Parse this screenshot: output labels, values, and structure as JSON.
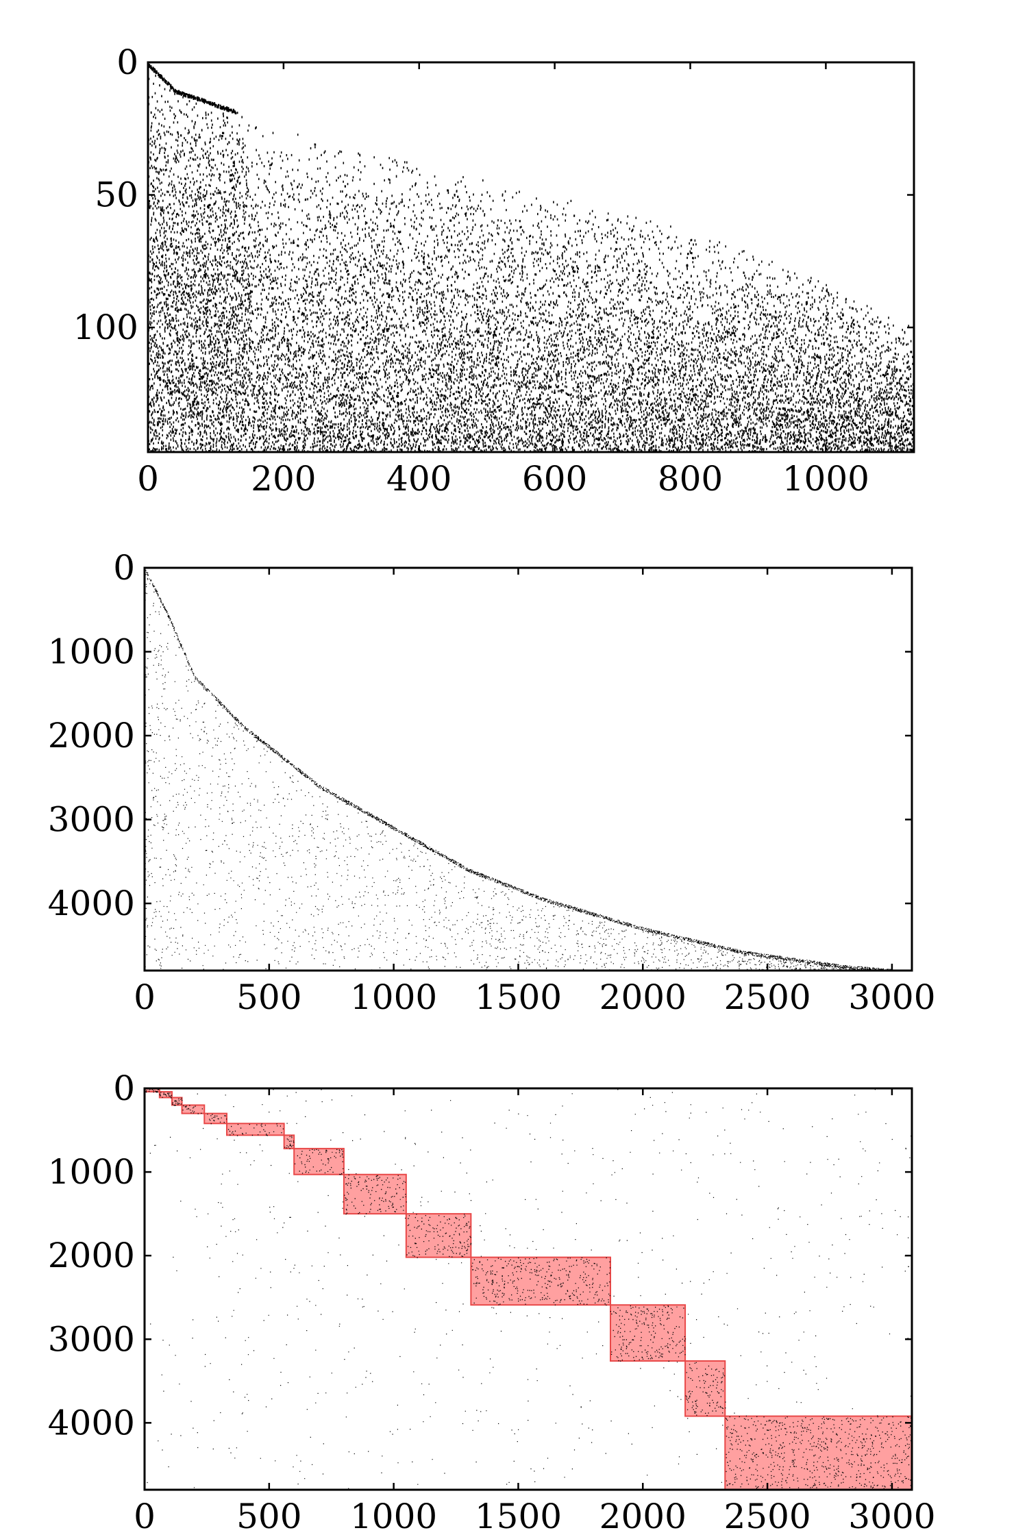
{
  "chart_data": [
    {
      "type": "sparsity",
      "title": "",
      "xlabel": "",
      "ylabel": "",
      "xlim": [
        0,
        1130
      ],
      "ylim": [
        147,
        0
      ],
      "x_ticks": [
        0,
        200,
        400,
        600,
        800,
        1000
      ],
      "y_ticks": [
        0,
        50,
        100
      ],
      "x_tick_labels": [
        "0",
        "200",
        "400",
        "600",
        "800",
        "1000"
      ],
      "y_tick_labels": [
        "0",
        "50",
        "100"
      ],
      "pattern": "staircase-upper-left",
      "frontier": [
        [
          0,
          0
        ],
        [
          40,
          10
        ],
        [
          120,
          17
        ],
        [
          200,
          24
        ],
        [
          300,
          32
        ],
        [
          400,
          38
        ],
        [
          500,
          44
        ],
        [
          600,
          50
        ],
        [
          700,
          56
        ],
        [
          800,
          63
        ],
        [
          900,
          72
        ],
        [
          1000,
          82
        ],
        [
          1100,
          96
        ],
        [
          1130,
          100
        ]
      ],
      "mark_color": "#000000"
    },
    {
      "type": "sparsity",
      "title": "",
      "xlabel": "",
      "ylabel": "",
      "xlim": [
        0,
        3080
      ],
      "ylim": [
        4800,
        0
      ],
      "x_ticks": [
        0,
        500,
        1000,
        1500,
        2000,
        2500,
        3000
      ],
      "y_ticks": [
        0,
        1000,
        2000,
        3000,
        4000
      ],
      "x_tick_labels": [
        "0",
        "500",
        "1000",
        "1500",
        "2000",
        "2500",
        "3000"
      ],
      "y_tick_labels": [
        "0",
        "1000",
        "2000",
        "3000",
        "4000"
      ],
      "pattern": "frontier-curve",
      "frontier": [
        [
          0,
          0
        ],
        [
          100,
          600
        ],
        [
          200,
          1300
        ],
        [
          400,
          1900
        ],
        [
          700,
          2600
        ],
        [
          1000,
          3100
        ],
        [
          1300,
          3600
        ],
        [
          1600,
          3950
        ],
        [
          2000,
          4300
        ],
        [
          2400,
          4580
        ],
        [
          2800,
          4750
        ],
        [
          3000,
          4800
        ]
      ],
      "mark_color": "#000000"
    },
    {
      "type": "sparsity",
      "title": "",
      "xlabel": "",
      "ylabel": "",
      "xlim": [
        0,
        3080
      ],
      "ylim": [
        4800,
        0
      ],
      "x_ticks": [
        0,
        500,
        1000,
        1500,
        2000,
        2500,
        3000
      ],
      "y_ticks": [
        0,
        1000,
        2000,
        3000,
        4000
      ],
      "x_tick_labels": [
        "0",
        "500",
        "1000",
        "1500",
        "2000",
        "2500",
        "3000"
      ],
      "y_tick_labels": [
        "0",
        "1000",
        "2000",
        "3000",
        "4000"
      ],
      "pattern": "block-diagonal",
      "highlight_color": "#ff8080",
      "highlight_blocks": [
        {
          "x0": 0,
          "x1": 60,
          "y0": 0,
          "y1": 40
        },
        {
          "x0": 60,
          "x1": 110,
          "y0": 40,
          "y1": 110
        },
        {
          "x0": 110,
          "x1": 150,
          "y0": 110,
          "y1": 200
        },
        {
          "x0": 150,
          "x1": 240,
          "y0": 200,
          "y1": 300
        },
        {
          "x0": 240,
          "x1": 330,
          "y0": 300,
          "y1": 420
        },
        {
          "x0": 330,
          "x1": 560,
          "y0": 420,
          "y1": 560
        },
        {
          "x0": 560,
          "x1": 600,
          "y0": 560,
          "y1": 720
        },
        {
          "x0": 600,
          "x1": 800,
          "y0": 720,
          "y1": 1030
        },
        {
          "x0": 800,
          "x1": 1050,
          "y0": 1030,
          "y1": 1500
        },
        {
          "x0": 1050,
          "x1": 1310,
          "y0": 1500,
          "y1": 2020
        },
        {
          "x0": 1310,
          "x1": 1870,
          "y0": 2020,
          "y1": 2590
        },
        {
          "x0": 1870,
          "x1": 2170,
          "y0": 2590,
          "y1": 3260
        },
        {
          "x0": 2170,
          "x1": 2330,
          "y0": 3260,
          "y1": 3920
        },
        {
          "x0": 2330,
          "x1": 3080,
          "y0": 3920,
          "y1": 4800
        }
      ],
      "mark_color": "#000000"
    }
  ]
}
